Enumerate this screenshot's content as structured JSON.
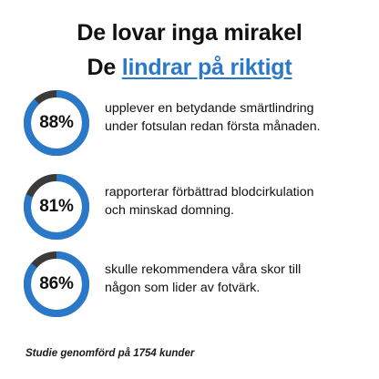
{
  "header": {
    "title": "De lovar inga mirakel",
    "subtitle_prefix": "De ",
    "subtitle_highlight": "lindrar på riktigt"
  },
  "colors": {
    "accent": "#2a79c8",
    "ring_track": "#3a3a3a",
    "text": "#111111"
  },
  "stats": [
    {
      "value": 88,
      "label": "88%",
      "line1": "upplever en betydande smärtlindring",
      "line2": "under fotsulan redan första månaden."
    },
    {
      "value": 81,
      "label": "81%",
      "line1": "rapporterar förbättrad blodcirkulation",
      "line2": "och minskad domning."
    },
    {
      "value": 86,
      "label": "86%",
      "line1": "skulle rekommendera våra skor till",
      "line2": "någon som lider av fotvärk."
    }
  ],
  "footnote": "Studie genomförd på 1754 kunder"
}
